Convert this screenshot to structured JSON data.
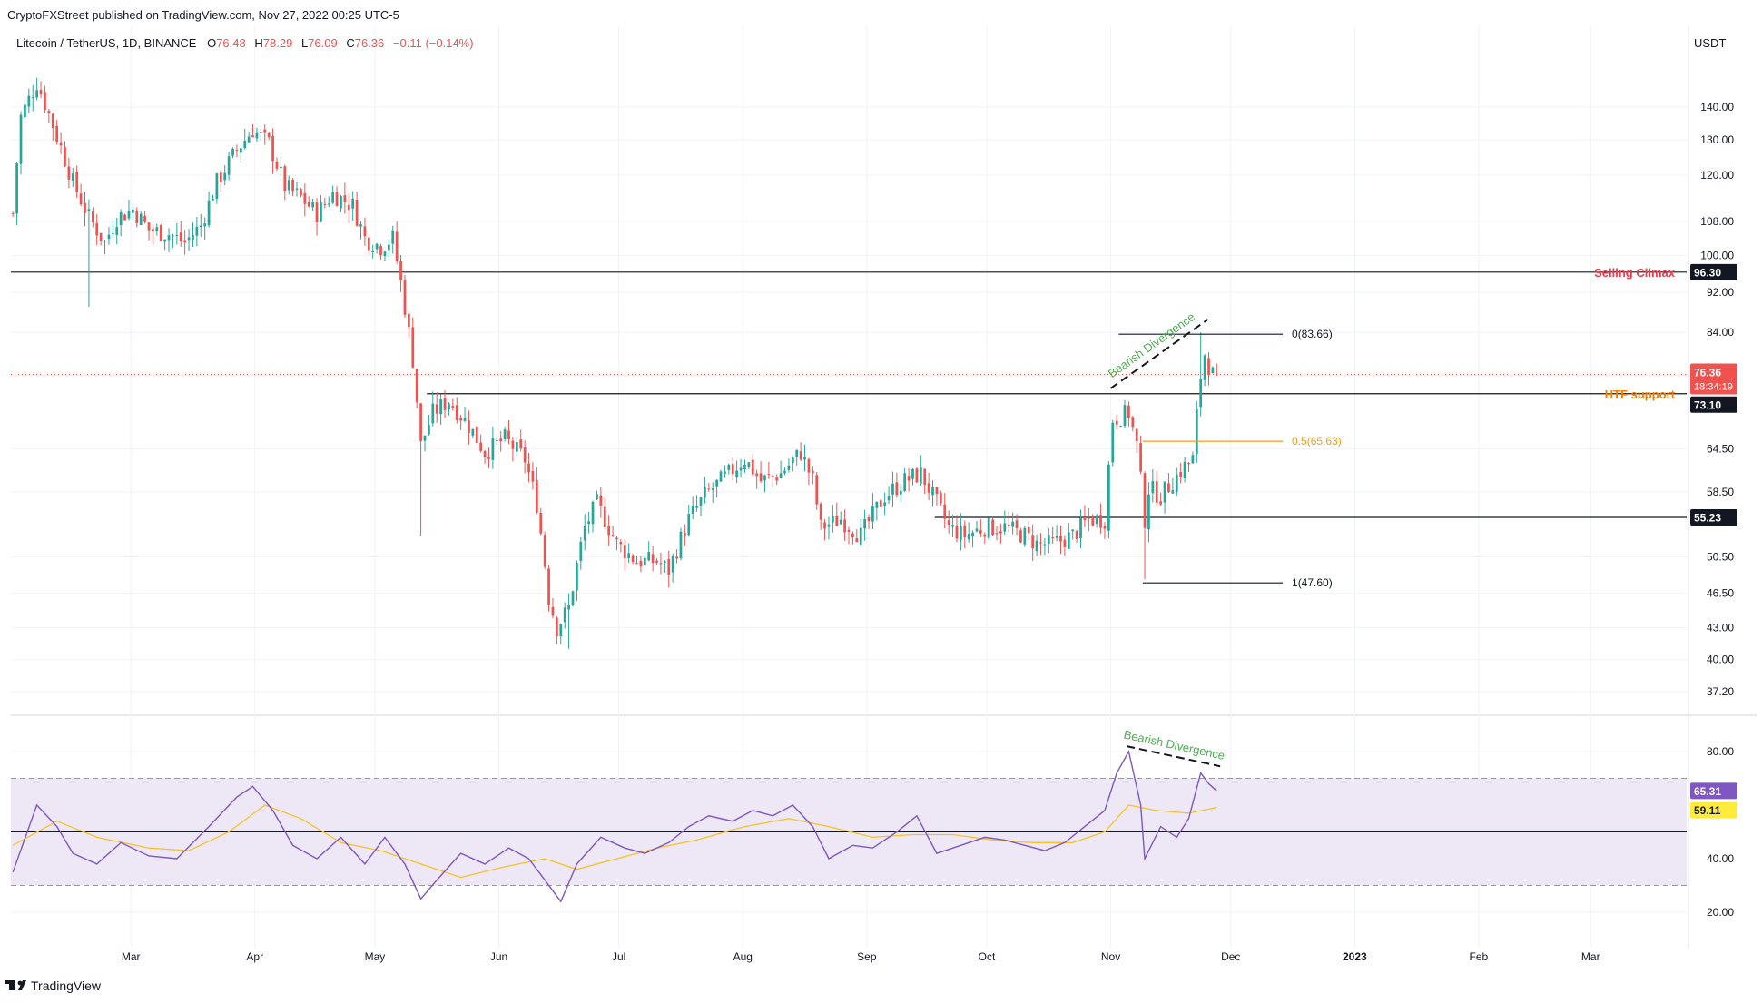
{
  "header": {
    "published_by": "CryptoFXStreet published on TradingView.com, Nov 27, 2022 00:25 UTC-5",
    "symbol": "Litecoin / TetherUS, 1D, BINANCE",
    "ohlc": {
      "o_label": "O",
      "o": "76.48",
      "h_label": "H",
      "h": "78.29",
      "l_label": "L",
      "l": "76.09",
      "c_label": "C",
      "c": "76.36",
      "change": "−0.11 (−0.14%)"
    }
  },
  "axis_currency": "USDT",
  "footer": {
    "brand": "TradingView"
  },
  "colors": {
    "up": "#26a69a",
    "down": "#ef5350",
    "rsi": "#7e57c2",
    "rsi_ma": "#f7c325",
    "fib_mid": "#f59c1a",
    "selling_climax": "#f23645",
    "htf_support": "#f57c00",
    "divergence_text": "#4caf50",
    "rsi_band": "#ede7f6"
  },
  "chart_data": [
    {
      "type": "candlestick",
      "title": "Litecoin / TetherUS, 1D, BINANCE",
      "scale": "log",
      "ylim": [
        35.5,
        155
      ],
      "y_ticks": [
        "140.00",
        "130.00",
        "120.00",
        "108.00",
        "100.00",
        "92.00",
        "84.00",
        "64.50",
        "58.50",
        "50.50",
        "46.50",
        "43.00",
        "40.00",
        "37.20"
      ],
      "x_ticks": [
        "Mar",
        "Apr",
        "May",
        "Jun",
        "Jul",
        "Aug",
        "Sep",
        "Oct",
        "Nov",
        "Dec",
        "2023",
        "Feb",
        "Mar"
      ],
      "xlim": [
        "2022-01-30",
        "2023-03-25"
      ],
      "close_path": [
        [
          "2022-01-30",
          110
        ],
        [
          "2022-02-01",
          137
        ],
        [
          "2022-02-05",
          148
        ],
        [
          "2022-02-10",
          131
        ],
        [
          "2022-02-14",
          118
        ],
        [
          "2022-02-18",
          109
        ],
        [
          "2022-02-22",
          103
        ],
        [
          "2022-02-25",
          109
        ],
        [
          "2022-03-01",
          111
        ],
        [
          "2022-03-05",
          106
        ],
        [
          "2022-03-10",
          105
        ],
        [
          "2022-03-14",
          103
        ],
        [
          "2022-03-18",
          107
        ],
        [
          "2022-03-22",
          118
        ],
        [
          "2022-03-27",
          127
        ],
        [
          "2022-03-31",
          133
        ],
        [
          "2022-04-04",
          129
        ],
        [
          "2022-04-08",
          117
        ],
        [
          "2022-04-12",
          114
        ],
        [
          "2022-04-16",
          110
        ],
        [
          "2022-04-20",
          115
        ],
        [
          "2022-04-25",
          112
        ],
        [
          "2022-04-28",
          104
        ],
        [
          "2022-05-02",
          102
        ],
        [
          "2022-05-05",
          104
        ],
        [
          "2022-05-07",
          94
        ],
        [
          "2022-05-10",
          79
        ],
        [
          "2022-05-12",
          65
        ],
        [
          "2022-05-15",
          70
        ],
        [
          "2022-05-19",
          72
        ],
        [
          "2022-05-24",
          68
        ],
        [
          "2022-05-28",
          64
        ],
        [
          "2022-06-02",
          66
        ],
        [
          "2022-06-07",
          63
        ],
        [
          "2022-06-10",
          57
        ],
        [
          "2022-06-13",
          46
        ],
        [
          "2022-06-15",
          43
        ],
        [
          "2022-06-18",
          45
        ],
        [
          "2022-06-22",
          54
        ],
        [
          "2022-06-25",
          57
        ],
        [
          "2022-06-30",
          52
        ],
        [
          "2022-07-05",
          50
        ],
        [
          "2022-07-10",
          50
        ],
        [
          "2022-07-13",
          49
        ],
        [
          "2022-07-18",
          55
        ],
        [
          "2022-07-22",
          58
        ],
        [
          "2022-07-28",
          61
        ],
        [
          "2022-08-01",
          63
        ],
        [
          "2022-08-05",
          60
        ],
        [
          "2022-08-10",
          61
        ],
        [
          "2022-08-15",
          64
        ],
        [
          "2022-08-18",
          60
        ],
        [
          "2022-08-20",
          54
        ],
        [
          "2022-08-25",
          55
        ],
        [
          "2022-08-30",
          53
        ],
        [
          "2022-09-05",
          58
        ],
        [
          "2022-09-10",
          60
        ],
        [
          "2022-09-14",
          61
        ],
        [
          "2022-09-18",
          57
        ],
        [
          "2022-09-21",
          54
        ],
        [
          "2022-09-25",
          53
        ],
        [
          "2022-09-30",
          54
        ],
        [
          "2022-10-05",
          54
        ],
        [
          "2022-10-10",
          53
        ],
        [
          "2022-10-13",
          52
        ],
        [
          "2022-10-17",
          52
        ],
        [
          "2022-10-22",
          53
        ],
        [
          "2022-10-26",
          55
        ],
        [
          "2022-10-30",
          55
        ],
        [
          "2022-11-01",
          69
        ],
        [
          "2022-11-05",
          70
        ],
        [
          "2022-11-07",
          65
        ],
        [
          "2022-11-09",
          55
        ],
        [
          "2022-11-10",
          59
        ],
        [
          "2022-11-13",
          58
        ],
        [
          "2022-11-16",
          60
        ],
        [
          "2022-11-19",
          62
        ],
        [
          "2022-11-21",
          63
        ],
        [
          "2022-11-23",
          76
        ],
        [
          "2022-11-24",
          80
        ],
        [
          "2022-11-25",
          78
        ],
        [
          "2022-11-26",
          76.36
        ]
      ],
      "key_points": [
        [
          "2022-02-04",
          147
        ],
        [
          "2022-02-18",
          89
        ],
        [
          "2022-03-31",
          134
        ],
        [
          "2022-05-12",
          53
        ],
        [
          "2022-06-18",
          41
        ],
        [
          "2022-11-09",
          48
        ],
        [
          "2022-11-23",
          84
        ]
      ],
      "last_candle": {
        "date": "2022-11-27",
        "open": 76.48,
        "high": 78.29,
        "low": 76.09,
        "close": 76.36
      },
      "annotations": {
        "selling_climax": {
          "label": "Selling Climax",
          "price": 96.3,
          "badge": "96.30"
        },
        "htf_support": {
          "label": "HTF support",
          "price": 73.1,
          "badge": "73.10"
        },
        "support_2": {
          "price": 55.23,
          "badge": "55.23"
        },
        "current_price": {
          "price": 76.36,
          "badge": "76.36",
          "countdown": "18:34:19"
        },
        "fib": [
          {
            "level": "0(83.66)",
            "price": 83.66
          },
          {
            "level": "0.5(65.63)",
            "price": 65.63
          },
          {
            "level": "1(47.60)",
            "price": 47.6
          }
        ],
        "divergence_label": "Bearish Divergence"
      }
    },
    {
      "type": "line",
      "title": "RSI",
      "ylim": [
        14,
        90
      ],
      "y_ticks": [
        "80.00",
        "40.00",
        "20.00"
      ],
      "band": [
        30,
        70
      ],
      "midline": 50,
      "rsi_path": [
        [
          "2022-01-30",
          35
        ],
        [
          "2022-02-05",
          60
        ],
        [
          "2022-02-10",
          52
        ],
        [
          "2022-02-14",
          42
        ],
        [
          "2022-02-20",
          38
        ],
        [
          "2022-02-26",
          46
        ],
        [
          "2022-03-05",
          41
        ],
        [
          "2022-03-12",
          40
        ],
        [
          "2022-03-20",
          52
        ],
        [
          "2022-03-27",
          63
        ],
        [
          "2022-03-31",
          67
        ],
        [
          "2022-04-05",
          58
        ],
        [
          "2022-04-10",
          45
        ],
        [
          "2022-04-16",
          40
        ],
        [
          "2022-04-22",
          48
        ],
        [
          "2022-04-28",
          38
        ],
        [
          "2022-05-03",
          48
        ],
        [
          "2022-05-08",
          38
        ],
        [
          "2022-05-12",
          25
        ],
        [
          "2022-05-16",
          32
        ],
        [
          "2022-05-22",
          42
        ],
        [
          "2022-05-28",
          38
        ],
        [
          "2022-06-03",
          44
        ],
        [
          "2022-06-08",
          40
        ],
        [
          "2022-06-12",
          32
        ],
        [
          "2022-06-16",
          24
        ],
        [
          "2022-06-20",
          38
        ],
        [
          "2022-06-26",
          48
        ],
        [
          "2022-07-02",
          44
        ],
        [
          "2022-07-07",
          42
        ],
        [
          "2022-07-13",
          46
        ],
        [
          "2022-07-18",
          52
        ],
        [
          "2022-07-23",
          56
        ],
        [
          "2022-07-29",
          54
        ],
        [
          "2022-08-03",
          58
        ],
        [
          "2022-08-08",
          56
        ],
        [
          "2022-08-13",
          60
        ],
        [
          "2022-08-18",
          52
        ],
        [
          "2022-08-22",
          40
        ],
        [
          "2022-08-28",
          45
        ],
        [
          "2022-09-02",
          44
        ],
        [
          "2022-09-08",
          50
        ],
        [
          "2022-09-13",
          56
        ],
        [
          "2022-09-18",
          42
        ],
        [
          "2022-09-24",
          45
        ],
        [
          "2022-09-30",
          48
        ],
        [
          "2022-10-05",
          47
        ],
        [
          "2022-10-10",
          45
        ],
        [
          "2022-10-15",
          43
        ],
        [
          "2022-10-20",
          46
        ],
        [
          "2022-10-25",
          52
        ],
        [
          "2022-10-30",
          58
        ],
        [
          "2022-11-02",
          72
        ],
        [
          "2022-11-05",
          80
        ],
        [
          "2022-11-08",
          60
        ],
        [
          "2022-11-09",
          40
        ],
        [
          "2022-11-13",
          52
        ],
        [
          "2022-11-17",
          48
        ],
        [
          "2022-11-20",
          55
        ],
        [
          "2022-11-23",
          72
        ],
        [
          "2022-11-25",
          68
        ],
        [
          "2022-11-27",
          65.31
        ]
      ],
      "ma_path": [
        [
          "2022-01-30",
          45
        ],
        [
          "2022-02-10",
          54
        ],
        [
          "2022-02-20",
          48
        ],
        [
          "2022-03-05",
          44
        ],
        [
          "2022-03-15",
          43
        ],
        [
          "2022-03-25",
          50
        ],
        [
          "2022-04-03",
          60
        ],
        [
          "2022-04-12",
          55
        ],
        [
          "2022-04-22",
          46
        ],
        [
          "2022-05-02",
          43
        ],
        [
          "2022-05-12",
          38
        ],
        [
          "2022-05-22",
          33
        ],
        [
          "2022-06-02",
          37
        ],
        [
          "2022-06-12",
          40
        ],
        [
          "2022-06-20",
          36
        ],
        [
          "2022-06-30",
          40
        ],
        [
          "2022-07-10",
          44
        ],
        [
          "2022-07-20",
          47
        ],
        [
          "2022-08-01",
          52
        ],
        [
          "2022-08-12",
          55
        ],
        [
          "2022-08-22",
          52
        ],
        [
          "2022-09-02",
          48
        ],
        [
          "2022-09-12",
          49
        ],
        [
          "2022-09-22",
          49
        ],
        [
          "2022-10-02",
          47
        ],
        [
          "2022-10-12",
          46
        ],
        [
          "2022-10-22",
          46
        ],
        [
          "2022-10-30",
          50
        ],
        [
          "2022-11-05",
          60
        ],
        [
          "2022-11-12",
          58
        ],
        [
          "2022-11-20",
          57
        ],
        [
          "2022-11-27",
          59.11
        ]
      ],
      "value_badge": "65.31",
      "ma_badge": "59.11",
      "divergence_label": "Bearish Divergence"
    }
  ]
}
